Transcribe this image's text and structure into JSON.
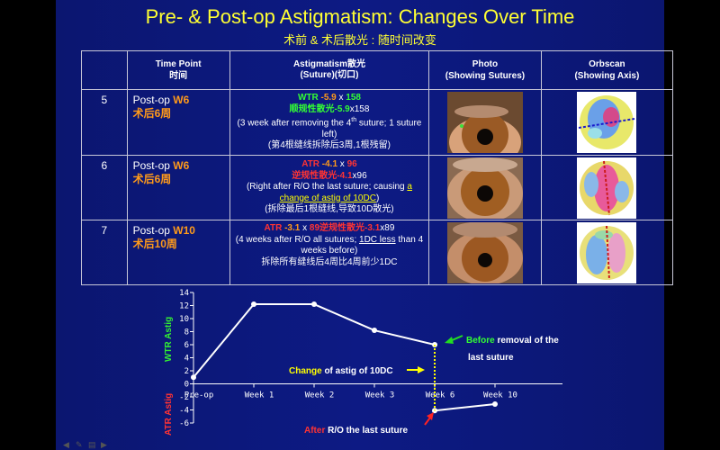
{
  "title": "Pre- & Post-op Astigmatism: Changes Over Time",
  "subtitle_zh": "术前",
  "subtitle_amp": " & ",
  "subtitle_zh2": "术后散光",
  "subtitle_zh3": " : 随时间改变",
  "table": {
    "headers": {
      "c1": "",
      "c2_en": "Time Point",
      "c2_zh": "时间",
      "c3_en": "Astigmatism散光",
      "c3_sub": "(Suture)(切口)",
      "c4_en": "Photo",
      "c4_sub": "(Showing Sutures)",
      "c5_en": "Orbscan",
      "c5_sub": "(Showing Axis)"
    },
    "rows": [
      {
        "num": "5",
        "time_pre": "Post-op ",
        "time_hl": "W6",
        "time_zh": "术后6周",
        "a_type": "WTR",
        "a_val": " -5.9",
        "a_x": " x ",
        "a_axis": "158",
        "a_zh": "顺规性散光-5.9",
        "a_zh_tail": "x158",
        "a_note1": "(3 week after removing the 4",
        "a_note_sup": "th",
        "a_note2": " suture; 1 suture left)",
        "a_note_zh": "(第4根缝线拆除后3周,1根残留)"
      },
      {
        "num": "6",
        "time_pre": "Post-op ",
        "time_hl": "W6",
        "time_zh": "术后6周",
        "a_type": "ATR",
        "a_val": " -4.1",
        "a_x": " x ",
        "a_axis": "96",
        "a_zh": "逆规性散光-4.1",
        "a_zh_tail": "x96",
        "a_note1": "(Right after R/O the last suture; causing ",
        "a_note_link": "a change of astig of 10DC",
        "a_note2": ")",
        "a_note_zh": "(拆除最后1根缝线,导致10D散光)"
      },
      {
        "num": "7",
        "time_pre": "Post-op ",
        "time_hl": "W10",
        "time_zh": "术后10周",
        "a_type": "ATR",
        "a_val": " -3.1",
        "a_x": " x ",
        "a_axis": "89",
        "a_zh": "逆规性散光-3.1",
        "a_zh_tail": "x89",
        "a_note1": "(4 weeks after R/O all sutures; ",
        "a_note_link": "1DC less",
        "a_note2": " than 4 weeks before)",
        "a_note_zh": "拆除所有缝线后4周比4周前少1DC"
      }
    ]
  },
  "chart_data": {
    "type": "line",
    "categories": [
      "Pre-op",
      "Week 1",
      "Week 2",
      "Week 3",
      "Week 6",
      "Week 10"
    ],
    "series": [
      {
        "values": [
          1,
          12.2,
          12.2,
          8.2,
          6,
          null
        ]
      },
      {
        "values": [
          null,
          null,
          null,
          null,
          -4.1,
          -3.1
        ]
      }
    ],
    "ylim": [
      -6,
      14
    ],
    "yticks": [
      "14",
      "12",
      "10",
      "8",
      "6",
      "4",
      "2",
      "0",
      "-2",
      "-4",
      "-6"
    ],
    "ylabel_top": "WTR Astig",
    "ylabel_bottom": "ATR Astig",
    "annotations": {
      "before_hl": "Before",
      "before_rest": " removal of the",
      "before_line2": "last suture",
      "change_hl": "Change",
      "change_rest": " of astig of 10DC",
      "after_hl": "After",
      "after_rest": " R/O the last suture"
    },
    "colors": {
      "line": "#ffffff",
      "connector": "#ffff00",
      "arrow_green": "#22dd22",
      "arrow_red": "#ff2222"
    }
  },
  "colors": {
    "background": "#0d1a84",
    "title": "#ffff33",
    "highlight_orange": "#ff9a1a"
  },
  "nav_icons": [
    "prev-arrow-icon",
    "pen-icon",
    "menu-icon",
    "next-arrow-icon"
  ]
}
